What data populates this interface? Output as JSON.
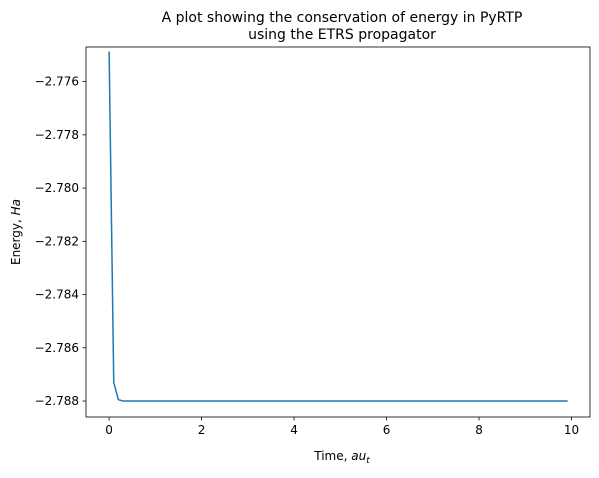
{
  "chart_data": {
    "type": "line",
    "title_lines": [
      "A plot showing the conservation of energy in PyRTP",
      "using the ETRS propagator"
    ],
    "xlabel": {
      "prefix": "Time, ",
      "math": "au",
      "subscript": "t"
    },
    "ylabel": {
      "prefix": "Energy, ",
      "math": "Ha"
    },
    "xlim": [
      -0.5,
      10.4
    ],
    "ylim": [
      -2.7886,
      -2.7747
    ],
    "x_ticks": [
      0,
      2,
      4,
      6,
      8,
      10
    ],
    "x_tick_labels": [
      "0",
      "2",
      "4",
      "6",
      "8",
      "10"
    ],
    "y_ticks": [
      -2.776,
      -2.778,
      -2.78,
      -2.782,
      -2.784,
      -2.786,
      -2.788
    ],
    "y_tick_labels": [
      "−2.776",
      "−2.778",
      "−2.780",
      "−2.782",
      "−2.784",
      "−2.786",
      "−2.788"
    ],
    "grid": false,
    "series": [
      {
        "color": "#1f77b4",
        "x": [
          0.0,
          0.1,
          0.2,
          0.3,
          0.4,
          0.5,
          1.0,
          2.0,
          3.0,
          4.0,
          5.0,
          6.0,
          7.0,
          8.0,
          9.0,
          9.9
        ],
        "y": [
          -2.7749,
          -2.7873,
          -2.78795,
          -2.788,
          -2.788,
          -2.788,
          -2.788,
          -2.788,
          -2.788,
          -2.788,
          -2.788,
          -2.788,
          -2.788,
          -2.788,
          -2.788,
          -2.788
        ]
      }
    ]
  }
}
